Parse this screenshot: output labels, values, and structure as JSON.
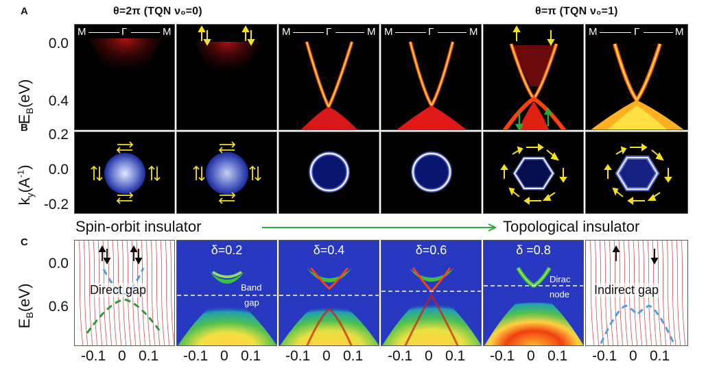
{
  "panel_labels": {
    "a": "A",
    "b": "B",
    "c": "C"
  },
  "headers": {
    "left": "θ=2π (TQN ν₀=0)",
    "right": "θ=π (TQN ν₀=1)"
  },
  "kpath": {
    "m": "M",
    "gamma": "Γ"
  },
  "row_a": {
    "ylabel": "E_B(eV)",
    "ylabel_main": "E",
    "ylabel_sub": "B",
    "ylabel_unit": "(eV)",
    "yticks": [
      "0.0",
      "0.4"
    ]
  },
  "row_b": {
    "ylabel_main": "k",
    "ylabel_sub": "y",
    "ylabel_unit": "(A",
    "ylabel_sup": "-1",
    "ylabel_close": ")",
    "yticks": [
      "0.2",
      "0.0",
      "-0.2"
    ]
  },
  "transition": {
    "left": "Spin-orbit insulator",
    "right": "Topological insulator"
  },
  "row_c": {
    "ylabel_main": "E",
    "ylabel_sub": "B",
    "ylabel_unit": "(eV)",
    "yticks": [
      "0.0",
      "0.6"
    ],
    "deltas": [
      "δ=0.2",
      "δ=0.4",
      "δ=0.6",
      "δ =0.8"
    ],
    "direct_gap": "Direct gap",
    "indirect_gap": "Indirect gap",
    "band_gap_1": "Band",
    "band_gap_2": "gap",
    "dirac_1": "Dirac",
    "dirac_2": "node"
  },
  "xticks": [
    "-0.1",
    "0",
    "0.1"
  ],
  "colors": {
    "arpes_red": "#e01010",
    "arpes_yellow": "#ffe040",
    "fermi_blue": "#1a2a9a",
    "spin_arrow": "#f5e020",
    "green_arrow": "#2aaa3a",
    "map_blue": "#2838c0",
    "edc_line": "#c03030",
    "dash_blue": "#4aa0e0",
    "dash_green": "#2a9a3a"
  }
}
